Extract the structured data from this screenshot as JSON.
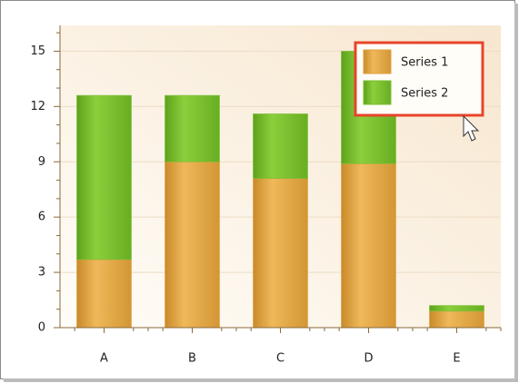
{
  "chart_data": {
    "type": "stacked_bar",
    "categories": [
      "A",
      "B",
      "C",
      "D",
      "E"
    ],
    "series": [
      {
        "name": "Series 1",
        "color": "#e0a040",
        "values": [
          3.7,
          9.0,
          8.1,
          8.9,
          0.9
        ]
      },
      {
        "name": "Series 2",
        "color": "#78be2e",
        "values": [
          8.9,
          3.6,
          3.5,
          6.1,
          0.3
        ]
      }
    ],
    "ylim": [
      0,
      16.4
    ],
    "yticks": [
      0,
      3,
      6,
      9,
      12,
      15
    ],
    "grid": true,
    "legend": "top-right"
  }
}
